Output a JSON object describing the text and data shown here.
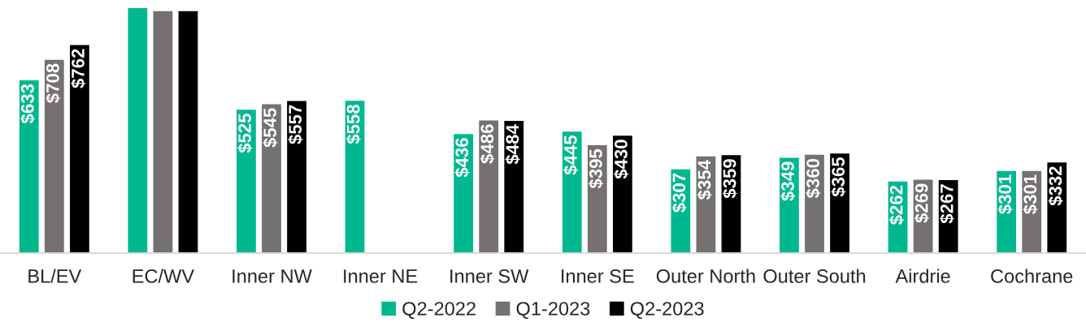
{
  "chart_data": {
    "type": "bar",
    "categories": [
      "BL/EV",
      "EC/WV",
      "Inner NW",
      "Inner NE",
      "Inner SW",
      "Inner SE",
      "Outer North",
      "Outer South",
      "Airdrie",
      "Cochrane"
    ],
    "series": [
      {
        "name": "Q2-2022",
        "color": "#00b890",
        "values": [
          633,
          897,
          525,
          558,
          436,
          445,
          307,
          349,
          262,
          301
        ],
        "value_labels": [
          "$633",
          null,
          "$525",
          "$558",
          "$436",
          "$445",
          "$307",
          "$349",
          "$262",
          "$301"
        ]
      },
      {
        "name": "Q1-2023",
        "color": "#767171",
        "values": [
          708,
          886,
          545,
          null,
          486,
          395,
          354,
          360,
          269,
          301
        ],
        "value_labels": [
          "$708",
          null,
          "$545",
          null,
          "$486",
          "$395",
          "$354",
          "$360",
          "$269",
          "$301"
        ]
      },
      {
        "name": "Q2-2023",
        "color": "#000000",
        "values": [
          762,
          886,
          557,
          null,
          484,
          430,
          359,
          365,
          267,
          332
        ],
        "value_labels": [
          "$762",
          null,
          "$557",
          null,
          "$484",
          "$430",
          "$359",
          "$365",
          "$267",
          "$332"
        ]
      }
    ],
    "tick_labels": "x",
    "legend": "bottom",
    "grid": false
  }
}
